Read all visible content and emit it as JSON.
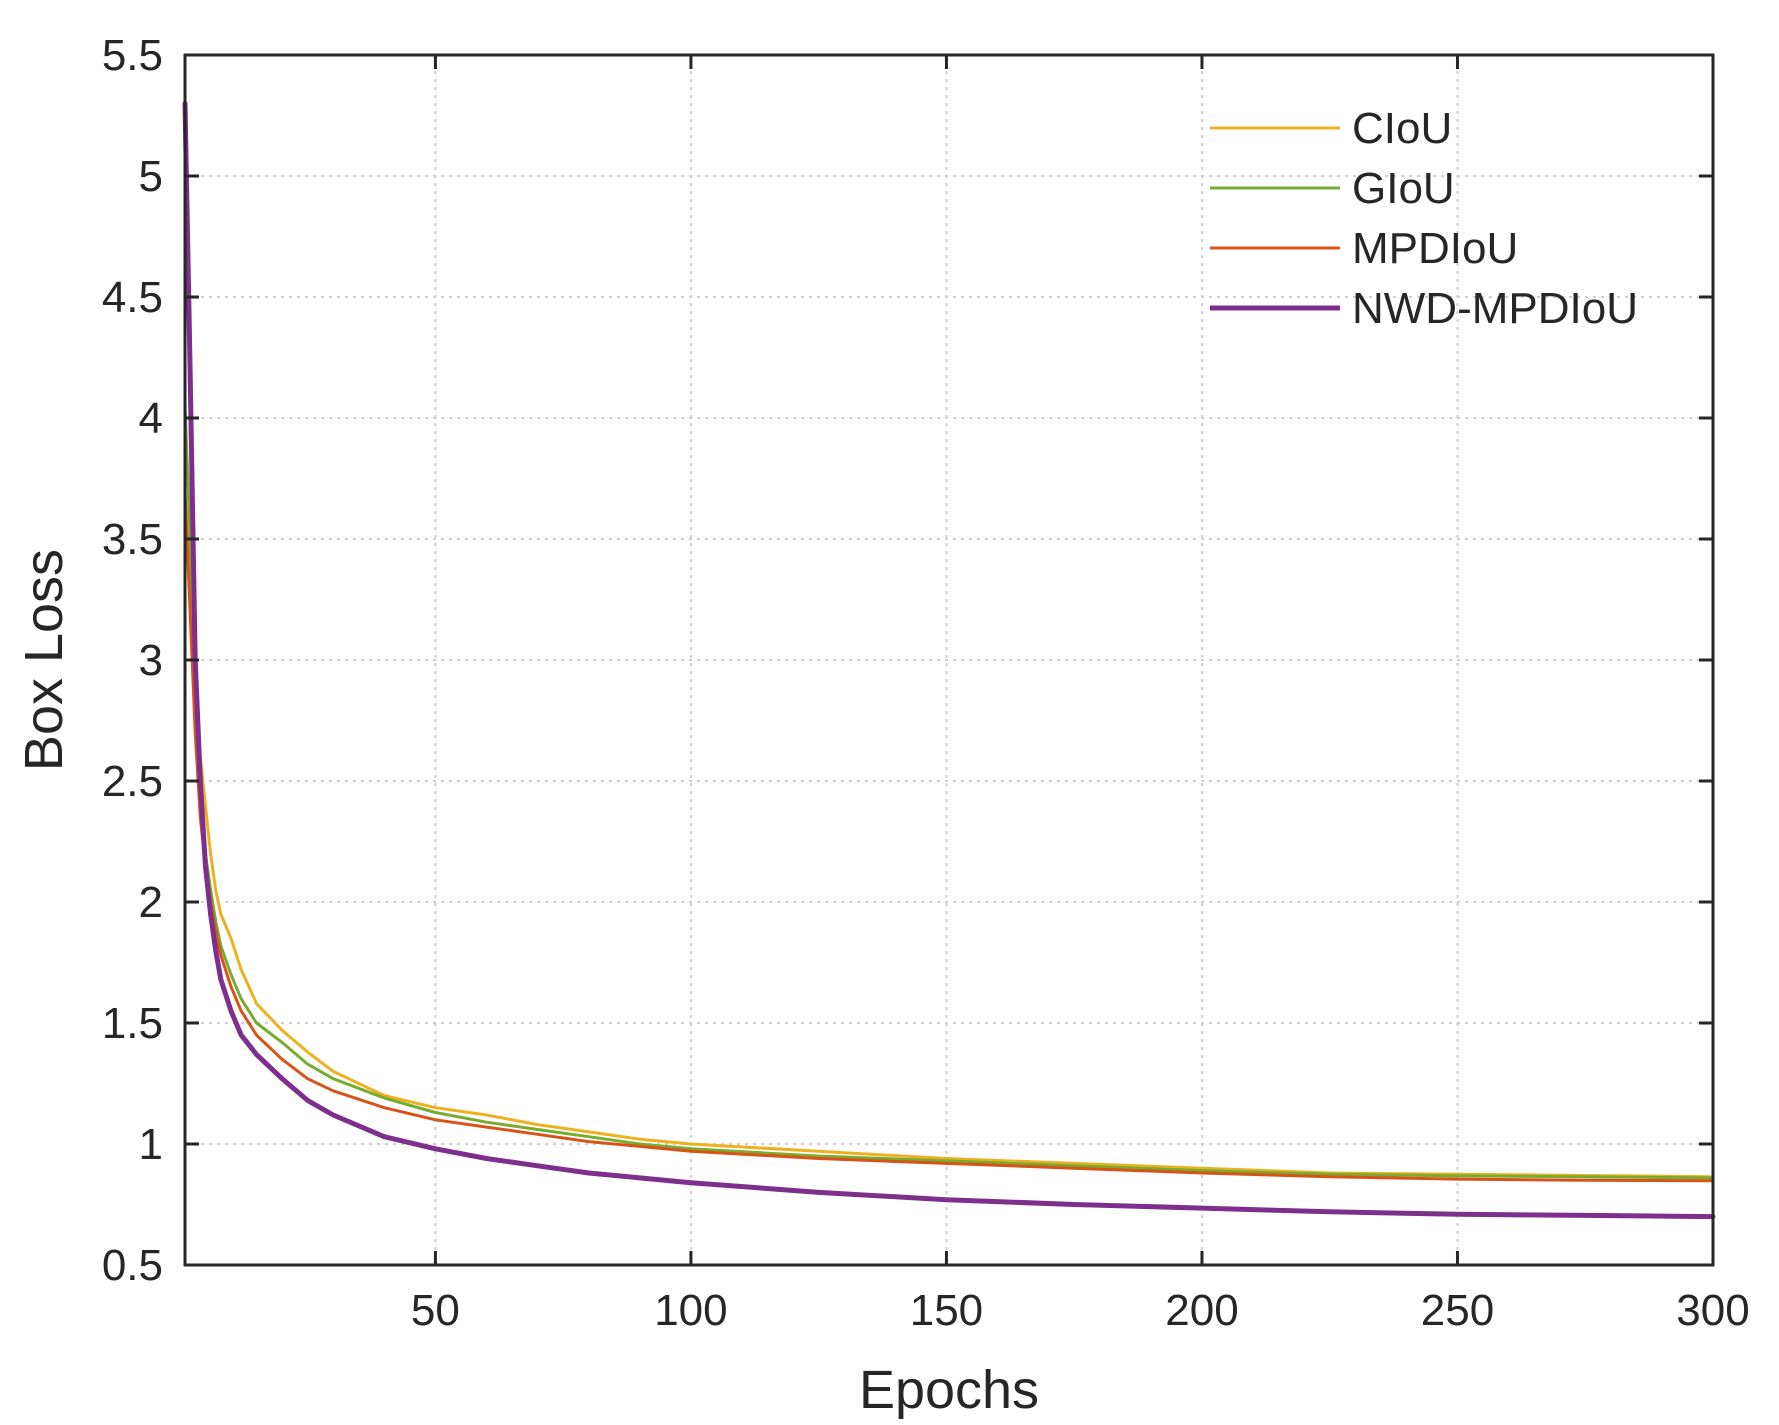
{
  "chart_data": {
    "type": "line",
    "xlabel": "Epochs",
    "ylabel": "Box Loss",
    "xlim": [
      1,
      300
    ],
    "ylim": [
      0.5,
      5.5
    ],
    "xticks": [
      50,
      100,
      150,
      200,
      250,
      300
    ],
    "yticks": [
      0.5,
      1,
      1.5,
      2,
      2.5,
      3,
      3.5,
      4,
      4.5,
      5,
      5.5
    ],
    "xtick_labels": [
      "50",
      "100",
      "150",
      "200",
      "250",
      "300"
    ],
    "ytick_labels": [
      "0.5",
      "1",
      "1.5",
      "2",
      "2.5",
      "3",
      "3.5",
      "4",
      "4.5",
      "5",
      "5.5"
    ],
    "grid": true,
    "legend_position": "top-right",
    "series": [
      {
        "name": "CIoU",
        "color": "#EDB120",
        "x": [
          1,
          2,
          3,
          4,
          5,
          6,
          7,
          8,
          10,
          12,
          15,
          20,
          25,
          30,
          40,
          50,
          60,
          70,
          80,
          90,
          100,
          125,
          150,
          175,
          200,
          225,
          250,
          275,
          300
        ],
        "y": [
          3.65,
          3.3,
          2.9,
          2.6,
          2.4,
          2.2,
          2.05,
          1.95,
          1.85,
          1.72,
          1.58,
          1.47,
          1.38,
          1.3,
          1.2,
          1.15,
          1.12,
          1.08,
          1.05,
          1.02,
          1.0,
          0.97,
          0.94,
          0.92,
          0.9,
          0.88,
          0.875,
          0.87,
          0.865
        ]
      },
      {
        "name": "GIoU",
        "color": "#77AC30",
        "x": [
          1,
          2,
          3,
          4,
          5,
          6,
          7,
          8,
          10,
          12,
          15,
          20,
          25,
          30,
          40,
          50,
          60,
          70,
          80,
          90,
          100,
          125,
          150,
          175,
          200,
          225,
          250,
          275,
          300
        ],
        "y": [
          4.05,
          3.5,
          2.8,
          2.45,
          2.2,
          2.05,
          1.92,
          1.82,
          1.7,
          1.6,
          1.5,
          1.42,
          1.33,
          1.27,
          1.19,
          1.13,
          1.09,
          1.06,
          1.03,
          1.0,
          0.98,
          0.95,
          0.93,
          0.91,
          0.89,
          0.875,
          0.868,
          0.865,
          0.86
        ]
      },
      {
        "name": "MPDIoU",
        "color": "#D95319",
        "x": [
          1,
          2,
          3,
          4,
          5,
          6,
          7,
          8,
          10,
          12,
          15,
          20,
          25,
          30,
          40,
          50,
          60,
          70,
          80,
          90,
          100,
          125,
          150,
          175,
          200,
          225,
          250,
          275,
          300
        ],
        "y": [
          3.7,
          3.2,
          2.7,
          2.35,
          2.15,
          2.0,
          1.88,
          1.78,
          1.65,
          1.55,
          1.45,
          1.35,
          1.27,
          1.22,
          1.15,
          1.1,
          1.07,
          1.04,
          1.01,
          0.99,
          0.97,
          0.94,
          0.92,
          0.9,
          0.88,
          0.865,
          0.855,
          0.85,
          0.848
        ]
      },
      {
        "name": "NWD-MPDIoU",
        "color": "#7E2F8E",
        "x": [
          1,
          2,
          3,
          4,
          5,
          6,
          7,
          8,
          10,
          12,
          15,
          20,
          25,
          30,
          40,
          50,
          60,
          70,
          80,
          90,
          100,
          125,
          150,
          175,
          200,
          225,
          250,
          275,
          300
        ],
        "y": [
          5.3,
          4.2,
          3.0,
          2.5,
          2.15,
          1.95,
          1.8,
          1.68,
          1.55,
          1.45,
          1.37,
          1.27,
          1.18,
          1.12,
          1.03,
          0.98,
          0.94,
          0.91,
          0.88,
          0.86,
          0.84,
          0.8,
          0.77,
          0.75,
          0.735,
          0.72,
          0.71,
          0.705,
          0.7
        ]
      }
    ]
  }
}
